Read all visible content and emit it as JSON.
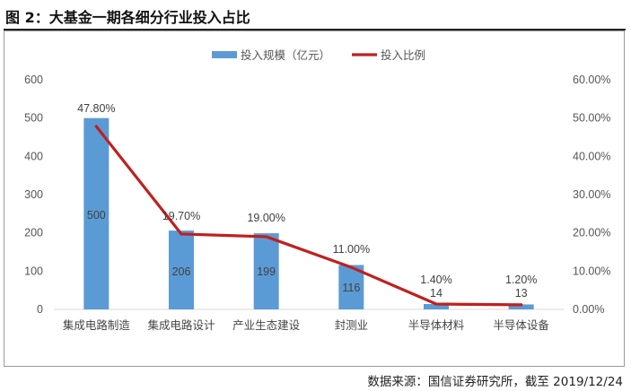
{
  "figure_caption": "图 2：大基金一期各细分行业投入占比",
  "source_note": "数据来源：国信证券研究所，截至 2019/12/24",
  "colors": {
    "bar": "#5B9BD5",
    "line": "#C0201E",
    "axis": "#d9d9d9",
    "text": "#595959"
  },
  "chart_data": {
    "type": "bar",
    "title": "",
    "categories": [
      "集成电路制造",
      "集成电路设计",
      "产业生态建设",
      "封测业",
      "半导体材料",
      "半导体设备"
    ],
    "series": [
      {
        "name": "投入规模（亿元）",
        "chart_type": "bar",
        "axis": "left",
        "values": [
          500,
          206,
          199,
          116,
          14,
          13
        ],
        "labels": [
          "500",
          "206",
          "199",
          "116",
          "14",
          "13"
        ]
      },
      {
        "name": "投入比例",
        "chart_type": "line",
        "axis": "right",
        "values": [
          47.8,
          19.7,
          19.0,
          11.0,
          1.4,
          1.2
        ],
        "labels": [
          "47.80%",
          "19.70%",
          "19.00%",
          "11.00%",
          "1.40%",
          "1.20%"
        ]
      }
    ],
    "y_left": {
      "ylim": [
        0,
        600
      ],
      "ticks": [
        "0",
        "100",
        "200",
        "300",
        "400",
        "500",
        "600"
      ]
    },
    "y_right": {
      "ylim": [
        0,
        60
      ],
      "ticks": [
        "0.00%",
        "10.00%",
        "20.00%",
        "30.00%",
        "40.00%",
        "50.00%",
        "60.00%"
      ]
    },
    "grid": false,
    "legend_position": "top"
  }
}
